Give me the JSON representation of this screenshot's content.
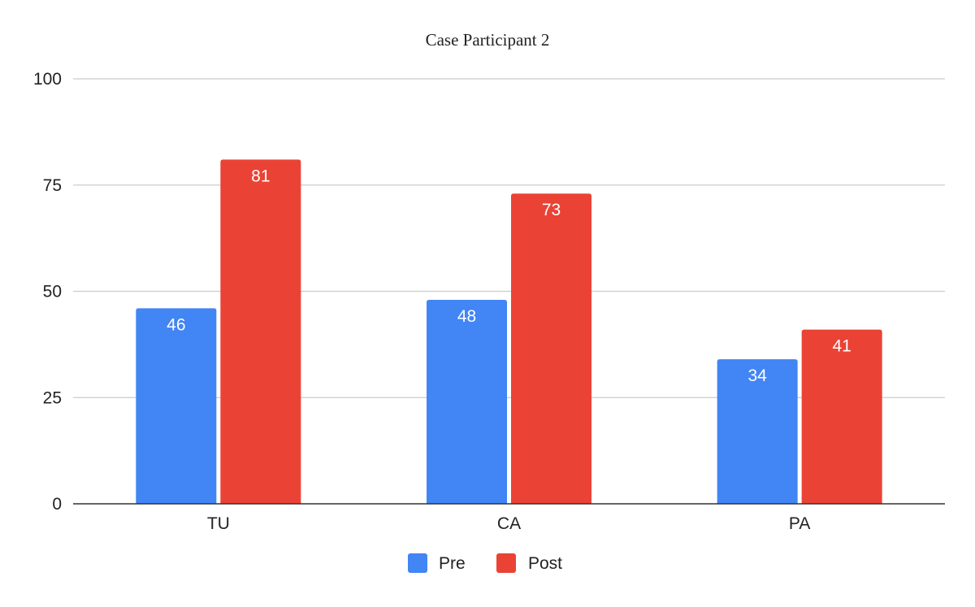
{
  "chart_data": {
    "type": "bar",
    "title": "Case Participant 2",
    "categories": [
      "TU",
      "CA",
      "PA"
    ],
    "series": [
      {
        "name": "Pre",
        "values": [
          46,
          48,
          34
        ],
        "color": "#4285f4"
      },
      {
        "name": "Post",
        "values": [
          81,
          73,
          41
        ],
        "color": "#ea4335"
      }
    ],
    "ylim": [
      0,
      100
    ],
    "yticks": [
      0,
      25,
      50,
      75,
      100
    ],
    "grid": true,
    "legend_position": "bottom",
    "data_labels": true
  }
}
